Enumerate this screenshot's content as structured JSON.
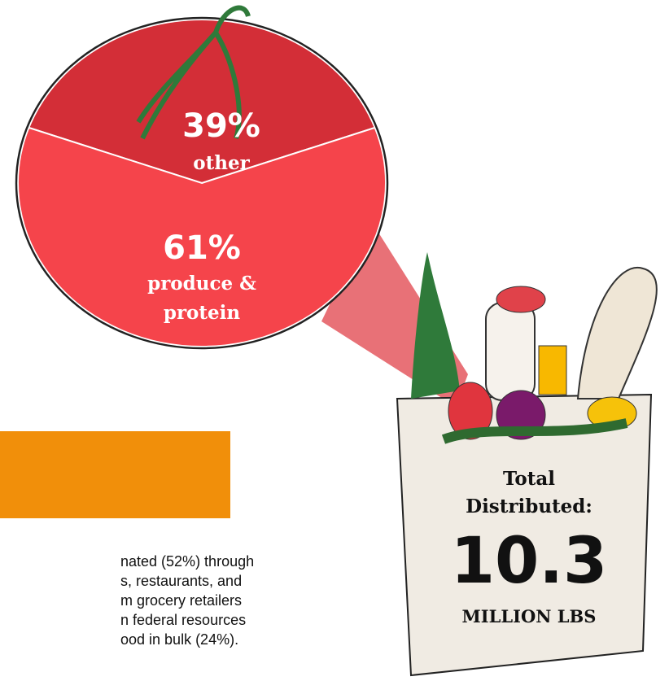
{
  "chart_data": {
    "type": "pie",
    "categories": [
      "other",
      "produce & protein"
    ],
    "values": [
      39,
      61
    ],
    "value_labels": [
      "39%",
      "61%"
    ],
    "colors": [
      "#d32e37",
      "#f5444b"
    ],
    "annotations": [
      "Total Distributed:",
      "10.3",
      "MILLION LBS"
    ],
    "body_text": [
      "nated (52%) through",
      "s, restaurants, and",
      "m grocery retailers",
      "n federal resources",
      "ood in bulk (24%)."
    ]
  }
}
